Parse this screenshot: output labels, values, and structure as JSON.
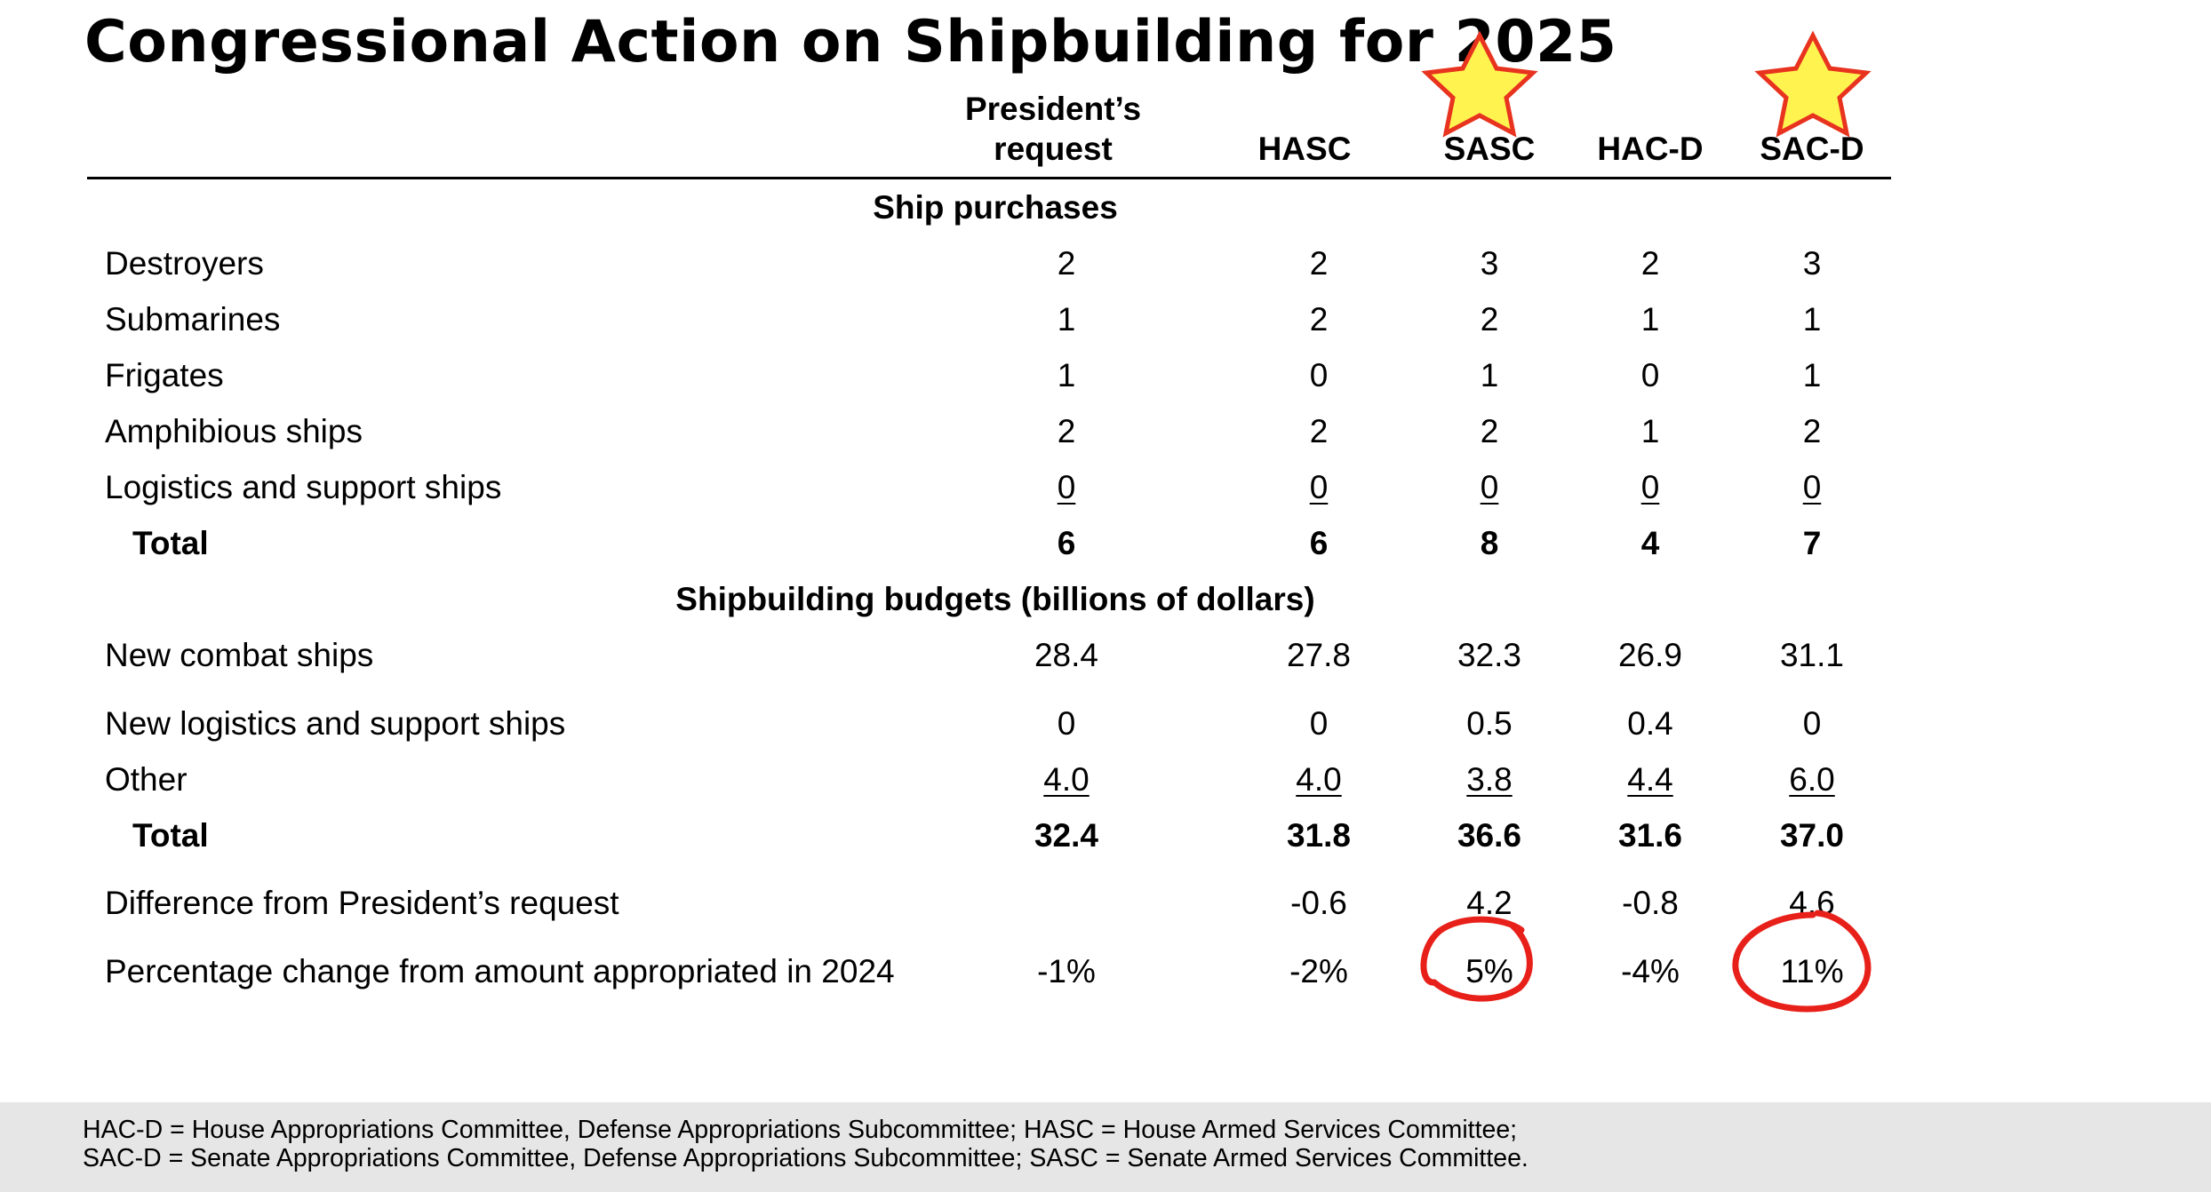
{
  "title": "Congressional Action on Shipbuilding for 2025",
  "columns": [
    {
      "line1": "President’s",
      "line2": "request"
    },
    {
      "line1": "HASC"
    },
    {
      "line1": "SASC"
    },
    {
      "line1": "HAC-D"
    },
    {
      "line1": "SAC-D"
    }
  ],
  "sections": {
    "purchases": "Ship purchases",
    "budgets": "Shipbuilding budgets (billions of dollars)"
  },
  "purchase_rows": [
    {
      "label": "Destroyers",
      "values": [
        "2",
        "2",
        "3",
        "2",
        "3"
      ]
    },
    {
      "label": "Submarines",
      "values": [
        "1",
        "2",
        "2",
        "1",
        "1"
      ]
    },
    {
      "label": "Frigates",
      "values": [
        "1",
        "0",
        "1",
        "0",
        "1"
      ]
    },
    {
      "label": "Amphibious ships",
      "values": [
        "2",
        "2",
        "2",
        "1",
        "2"
      ]
    },
    {
      "label": "Logistics and support ships",
      "values": [
        "0",
        "0",
        "0",
        "0",
        "0"
      ]
    },
    {
      "label": "Total",
      "values": [
        "6",
        "6",
        "8",
        "4",
        "7"
      ]
    }
  ],
  "budget_rows": [
    {
      "label": "New combat ships",
      "values": [
        "28.4",
        "27.8",
        "32.3",
        "26.9",
        "31.1"
      ]
    },
    {
      "label": "New logistics and support ships",
      "values": [
        "0",
        "0",
        "0.5",
        "0.4",
        "0"
      ]
    },
    {
      "label": "Other",
      "values": [
        "4.0",
        "4.0",
        "3.8",
        "4.4",
        "6.0"
      ]
    },
    {
      "label": "Total",
      "values": [
        "32.4",
        "31.8",
        "36.6",
        "31.6",
        "37.0"
      ]
    },
    {
      "label": "Difference from President’s request",
      "values": [
        "",
        "-0.6",
        "4.2",
        "-0.8",
        "4.6"
      ]
    },
    {
      "label": "Percentage change from amount appropriated in 2024",
      "values": [
        "-1%",
        "-2%",
        "5%",
        "-4%",
        "11%"
      ]
    }
  ],
  "footnotes": {
    "line1": "HAC-D = House Appropriations Committee, Defense Appropriations Subcommittee; HASC = House Armed Services Committee;",
    "line2": "SAC-D = Senate Appropriations Committee, Defense Appropriations Subcommittee; SASC = Senate Armed Services Committee."
  },
  "annotations": {
    "star_fill": "#fff44f",
    "star_outline": "#e8331f",
    "circle_color": "#e8201a",
    "starred_columns": [
      "SASC",
      "SAC-D"
    ],
    "circled_values": [
      "5%",
      "11%"
    ]
  }
}
